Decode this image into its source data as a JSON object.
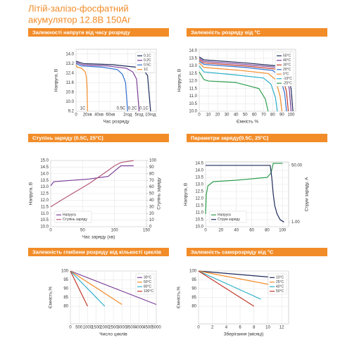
{
  "title": [
    "Літій-залізо-фосфатний",
    "акумулятор 12.8В 150Аг"
  ],
  "chart_data": [
    {
      "type": "line",
      "title": "Залежності напруги від часу розряду",
      "xlabel": "Час розряду",
      "ylabel": "Напруга, В",
      "xlim": [
        0,
        7
      ],
      "xticks": [
        {
          "value": 0,
          "label": "0"
        },
        {
          "value": 1,
          "label": "20хв"
        },
        {
          "value": 2,
          "label": "40хв"
        },
        {
          "value": 3,
          "label": "60хв"
        },
        {
          "value": 4.5,
          "label": "2год"
        },
        {
          "value": 5.5,
          "label": "5год"
        },
        {
          "value": 6.5,
          "label": "10год"
        }
      ],
      "ylim": [
        9.2,
        14.4
      ],
      "yticks": [
        9.2,
        {
          "value": 10,
          "label": "10.0"
        },
        10.8,
        11.6,
        12.4,
        13.2,
        {
          "value": 14,
          "label": "14.0"
        }
      ],
      "grid": true,
      "legend": "upper right",
      "curve_labels": true,
      "series": [
        {
          "name": "0.1C",
          "color": "#1f2a5a",
          "x": [
            0,
            0.65,
            3.25,
            5.2,
            5.85,
            6.24,
            6.5
          ],
          "values": [
            13.4,
            13.2,
            13.1,
            12.9,
            12.7,
            12.2,
            9.2
          ]
        },
        {
          "name": "0.2C",
          "color": "#7b3f98",
          "x": [
            0,
            0.55,
            2.75,
            4.4,
            4.95,
            5.28,
            5.5
          ],
          "values": [
            13.3,
            13.1,
            13.0,
            12.8,
            12.5,
            11.9,
            9.2
          ]
        },
        {
          "name": "0.5C",
          "color": "#2e6fd1",
          "x": [
            0,
            0.45,
            2.25,
            3.6,
            4.05,
            4.32,
            4.5
          ],
          "values": [
            13.2,
            13.0,
            12.9,
            12.7,
            12.3,
            11.6,
            9.2
          ]
        },
        {
          "name": "1C",
          "color": "#f28c28",
          "x": [
            0,
            0.1,
            0.5,
            0.8,
            0.9,
            0.96,
            1.0
          ],
          "values": [
            13.1,
            12.9,
            12.8,
            12.5,
            12.1,
            11.2,
            9.2
          ]
        }
      ]
    },
    {
      "type": "line",
      "title": "Залежність розряду від °С",
      "xlabel": "Ємність %",
      "ylabel": "Напруга, В",
      "xlim": [
        0,
        105
      ],
      "xticks": [
        0,
        10,
        20,
        30,
        40,
        50,
        60,
        70,
        80,
        90,
        100
      ],
      "ylim": [
        10,
        14.1
      ],
      "yticks": [
        {
          "value": 10,
          "label": "10.0"
        },
        10.5,
        {
          "value": 11,
          "label": "11.0"
        },
        11.5,
        {
          "value": 12,
          "label": "12.0"
        },
        12.5,
        {
          "value": 13,
          "label": "13.0"
        },
        13.5,
        {
          "value": 14,
          "label": "14.0"
        }
      ],
      "grid": true,
      "legend": "upper right",
      "series": [
        {
          "name": "50°C",
          "color": "#1f2a5a",
          "x": [
            0,
            5,
            50,
            85,
            95,
            100,
            102
          ],
          "values": [
            13.6,
            13.4,
            13.2,
            13.0,
            12.6,
            11.5,
            10.0
          ]
        },
        {
          "name": "40°C",
          "color": "#7b3f98",
          "x": [
            0,
            5,
            50,
            85,
            94,
            98,
            100
          ],
          "values": [
            13.5,
            13.3,
            13.1,
            12.9,
            12.5,
            11.5,
            10.0
          ]
        },
        {
          "name": "30°C",
          "color": "#c0392b",
          "x": [
            0,
            5,
            50,
            82,
            90,
            95,
            97
          ],
          "values": [
            13.4,
            13.2,
            13.0,
            12.8,
            12.4,
            11.3,
            10.0
          ]
        },
        {
          "name": "20°C",
          "color": "#2e6fd1",
          "x": [
            0,
            5,
            50,
            80,
            88,
            93,
            95
          ],
          "values": [
            13.3,
            13.1,
            12.9,
            12.7,
            12.3,
            11.2,
            10.0
          ]
        },
        {
          "name": "0°C",
          "color": "#f28c28",
          "x": [
            0,
            5,
            45,
            75,
            83,
            88,
            90
          ],
          "values": [
            13.2,
            12.9,
            12.7,
            12.5,
            12.1,
            11.0,
            10.0
          ]
        },
        {
          "name": "-10°C",
          "color": "#2bb0c9",
          "x": [
            0,
            5,
            40,
            70,
            78,
            83,
            85
          ],
          "values": [
            13.0,
            12.6,
            12.4,
            12.2,
            11.8,
            10.9,
            10.0
          ]
        },
        {
          "name": "-20°C",
          "color": "#2e9e4f",
          "x": [
            0,
            5,
            10,
            40,
            65,
            72,
            75
          ],
          "values": [
            12.6,
            12.1,
            12.0,
            11.9,
            11.5,
            10.8,
            10.0
          ]
        }
      ]
    },
    {
      "type": "line",
      "title": "Ступінь заряду (0.5С, 25°С)",
      "xlabel": "Час заряду (хв)",
      "ylabel": "Напруга, В",
      "y2label": "Ступінь заряду",
      "xlim": [
        0,
        150
      ],
      "xticks": [
        0,
        50,
        100,
        150
      ],
      "ylim": [
        10,
        15
      ],
      "yticks": [
        {
          "value": 10,
          "label": "10.0"
        },
        10.5,
        {
          "value": 11,
          "label": "11.0"
        },
        11.5,
        {
          "value": 12,
          "label": "12.0"
        },
        12.5,
        {
          "value": 13,
          "label": "13.0"
        },
        13.5,
        {
          "value": 14,
          "label": "14.0"
        },
        14.5,
        {
          "value": 15,
          "label": "15.0"
        }
      ],
      "y2lim": [
        0,
        100
      ],
      "y2ticks": [
        0,
        10,
        20,
        30,
        40,
        50,
        60,
        70,
        80,
        90,
        100
      ],
      "grid": true,
      "legend": "lower left",
      "series": [
        {
          "name": "Напруга",
          "color": "#7b3f98",
          "x": [
            0,
            5,
            60,
            90,
            100,
            110,
            130
          ],
          "values": [
            13.1,
            13.4,
            13.6,
            13.8,
            14.2,
            14.6,
            14.6
          ]
        },
        {
          "name": "Ступінь заряду",
          "color": "#b5577a",
          "axis": "y2",
          "x": [
            0,
            20,
            60,
            90,
            100,
            110,
            130
          ],
          "values": [
            30,
            42,
            65,
            85,
            92,
            97,
            100
          ]
        }
      ]
    },
    {
      "type": "line",
      "title": "Параметри заряду(0.5С, 25°С)",
      "xlabel": "",
      "ylabel": "Напруга, В",
      "y2label": "Струм заряду, А",
      "xlim": [
        0,
        108
      ],
      "xticks": [
        0,
        20,
        40,
        60,
        80,
        100
      ],
      "ylim": [
        10,
        14.6
      ],
      "yticks": [
        {
          "value": 10,
          "label": "10.0"
        },
        10.5,
        {
          "value": 11,
          "label": "11.0"
        },
        11.5,
        {
          "value": 12,
          "label": "12.0"
        },
        12.5,
        {
          "value": 13,
          "label": "13.0"
        },
        13.5,
        {
          "value": 14,
          "label": "14.0"
        },
        14.5
      ],
      "y2lim": [
        -3,
        53
      ],
      "y2ticks": [
        {
          "value": 1,
          "label": "1.00"
        },
        {
          "value": 50,
          "label": "50.00"
        }
      ],
      "grid": true,
      "legend": "lower left",
      "series": [
        {
          "name": "Напруга",
          "color": "#2e9e4f",
          "x": [
            0,
            1,
            3,
            10,
            40,
            80,
            85,
            88,
            100
          ],
          "values": [
            10.9,
            12.3,
            12.9,
            13.2,
            13.3,
            13.5,
            13.8,
            14.5,
            14.5
          ]
        },
        {
          "name": "Струм заряду",
          "color": "#1f2a5a",
          "axis": "y2",
          "x": [
            0,
            84,
            86,
            88,
            90,
            93,
            97,
            102
          ],
          "values": [
            50,
            50,
            40,
            25,
            15,
            8,
            3,
            1
          ]
        }
      ]
    },
    {
      "type": "line",
      "title": "Залежність глибини розряду від кількості циклів",
      "xlabel": "Число циклів",
      "ylabel": "Ємність,%",
      "xlim": [
        0,
        5000
      ],
      "xticks": [
        0,
        500,
        1000,
        1500,
        2000,
        2500,
        3000,
        3500,
        4000,
        4500,
        5000
      ],
      "ylim": [
        70,
        100
      ],
      "yticks": [
        80,
        85,
        90,
        95,
        100
      ],
      "grid": true,
      "legend": "upper right",
      "series": [
        {
          "name": "30°C",
          "color": "#7b3f98",
          "x": [
            0,
            5000
          ],
          "values": [
            100,
            81
          ]
        },
        {
          "name": "50°C",
          "color": "#f28c28",
          "x": [
            0,
            3000
          ],
          "values": [
            100,
            81
          ]
        },
        {
          "name": "80°C",
          "color": "#2bb0c9",
          "x": [
            0,
            2000
          ],
          "values": [
            100,
            80
          ]
        },
        {
          "name": "100°C",
          "color": "#c0392b",
          "x": [
            0,
            1000
          ],
          "values": [
            100,
            80
          ]
        }
      ]
    },
    {
      "type": "line",
      "title": "Залежність саморозряду від °С",
      "xlabel": "Зберігання (місяці)",
      "ylabel": "Ємність,%",
      "xlim": [
        0,
        13
      ],
      "xticks": [
        0,
        2,
        4,
        6,
        8,
        10,
        12
      ],
      "ylim": [
        70,
        100
      ],
      "yticks": [
        80,
        85,
        90,
        95,
        100
      ],
      "grid": true,
      "legend": "upper right",
      "series": [
        {
          "name": "10°C",
          "color": "#1f2a5a",
          "x": [
            0,
            12
          ],
          "values": [
            100,
            96
          ]
        },
        {
          "name": "25°C",
          "color": "#f28c28",
          "x": [
            0,
            12
          ],
          "values": [
            100,
            91
          ]
        },
        {
          "name": "40°C",
          "color": "#2bb0c9",
          "x": [
            0,
            9
          ],
          "values": [
            100,
            84
          ]
        },
        {
          "name": "50°C",
          "color": "#c0392b",
          "x": [
            0,
            8
          ],
          "values": [
            100,
            80
          ]
        }
      ]
    }
  ]
}
